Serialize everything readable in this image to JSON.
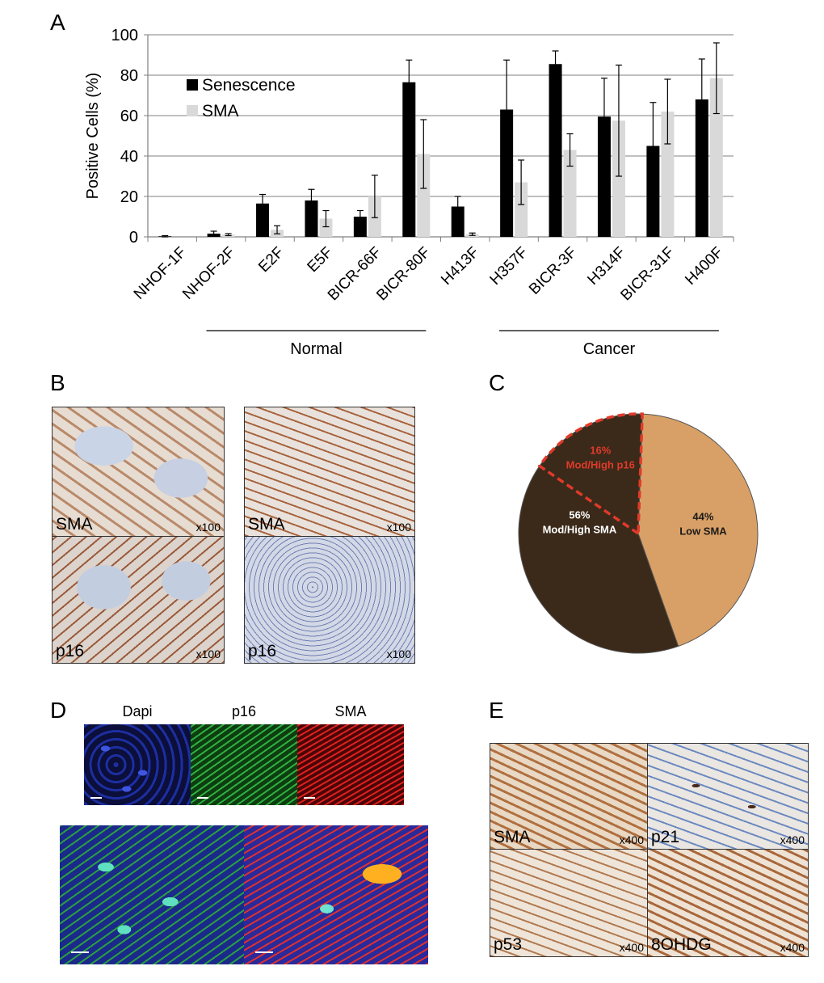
{
  "panels": {
    "a": "A",
    "b": "B",
    "c": "C",
    "d": "D",
    "e": "E"
  },
  "chart_data": [
    {
      "type": "bar",
      "panel": "A",
      "categories": [
        "NHOF-1F",
        "NHOF-2F",
        "E2F",
        "E5F",
        "BICR-66F",
        "BICR-80F",
        "H413F",
        "H357F",
        "BICR-3F",
        "H314F",
        "BICR-31F",
        "H400F"
      ],
      "series": [
        {
          "name": "Senescence",
          "color": "#000000",
          "values": [
            0.3,
            1.6,
            16.5,
            18,
            10,
            76.5,
            15,
            63,
            85.5,
            59.5,
            45,
            68
          ],
          "errors": [
            0.3,
            1.2,
            4.5,
            5.5,
            3,
            11,
            5,
            24.5,
            6.5,
            19,
            21.5,
            20
          ]
        },
        {
          "name": "SMA",
          "color": "#d9d9d9",
          "values": [
            0,
            1.1,
            3.5,
            9,
            20,
            41,
            1.3,
            27,
            43,
            57.5,
            62,
            78.5
          ],
          "errors": [
            0,
            0.5,
            2,
            4,
            10.5,
            17,
            0.6,
            11,
            8,
            27.5,
            16,
            17.5
          ]
        }
      ],
      "ylabel": "Positive Cells (%)",
      "ylim": [
        0,
        100
      ],
      "yticks": [
        0,
        20,
        40,
        60,
        80,
        100
      ],
      "grid": true,
      "legend": "top-left",
      "groups": [
        {
          "label": "Normal",
          "from": "NHOF-2F",
          "to": "BICR-80F"
        },
        {
          "label": "Cancer",
          "from": "H357F",
          "to": "H400F"
        }
      ]
    },
    {
      "type": "pie",
      "panel": "C",
      "slices": [
        {
          "label": "Low SMA",
          "value": 44,
          "pct": "44%",
          "color": "#d8a066"
        },
        {
          "label": "Mod/High SMA",
          "value": 56,
          "pct": "56%",
          "color": "#3b2a1a"
        }
      ],
      "sub_slice": {
        "label": "Mod/High p16",
        "value": 16,
        "pct": "16%",
        "color": "#e03a2a",
        "style": "dashed"
      }
    }
  ],
  "panel_b": {
    "left_top": {
      "stain": "SMA",
      "mag": "x100"
    },
    "left_bottom": {
      "stain": "p16",
      "mag": "x100"
    },
    "right_top": {
      "stain": "SMA",
      "mag": "x100"
    },
    "right_bottom": {
      "stain": "p16",
      "mag": "x100"
    }
  },
  "panel_d": {
    "channels": [
      "Dapi",
      "p16",
      "SMA"
    ]
  },
  "panel_e": {
    "top_left": {
      "stain": "SMA",
      "mag": "x400"
    },
    "top_right": {
      "stain": "p21",
      "mag": "x400"
    },
    "bottom_left": {
      "stain": "p53",
      "mag": "x400"
    },
    "bottom_right": {
      "stain": "8OHDG",
      "mag": "x400"
    }
  }
}
